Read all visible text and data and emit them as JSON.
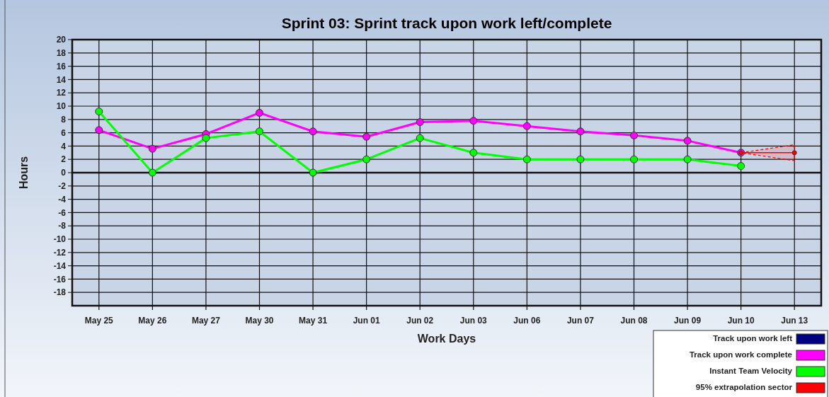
{
  "chart_data": {
    "type": "line",
    "title": "Sprint 03: Sprint track upon work left/complete",
    "xlabel": "Work Days",
    "ylabel": "Hours",
    "categories": [
      "May 25",
      "May 26",
      "May 27",
      "May 30",
      "May 31",
      "Jun 01",
      "Jun 02",
      "Jun 03",
      "Jun 06",
      "Jun 07",
      "Jun 08",
      "Jun 09",
      "Jun 10",
      "Jun 13"
    ],
    "series": [
      {
        "name": "Track upon work left",
        "color": "#000080",
        "values": [
          null,
          null,
          null,
          null,
          null,
          null,
          null,
          null,
          null,
          null,
          null,
          null,
          null,
          null
        ]
      },
      {
        "name": "Track upon work complete",
        "color": "#ff00ff",
        "values": [
          6.4,
          3.6,
          5.8,
          9.0,
          6.2,
          5.4,
          7.6,
          7.8,
          7.0,
          6.2,
          5.6,
          4.8,
          3.0,
          null
        ]
      },
      {
        "name": "Instant Team Velocity",
        "color": "#00ff00",
        "values": [
          9.2,
          0,
          5.2,
          6.2,
          0,
          2.0,
          5.2,
          3.0,
          2.0,
          2.0,
          2.0,
          2.0,
          1.0,
          null
        ]
      },
      {
        "name": "95% extrapolation sector",
        "color": "#ff0000",
        "values": [
          null,
          null,
          null,
          null,
          null,
          null,
          null,
          null,
          null,
          null,
          null,
          null,
          3.0,
          3.0
        ],
        "lower": [
          null,
          null,
          null,
          null,
          null,
          null,
          null,
          null,
          null,
          null,
          null,
          null,
          3.0,
          1.8
        ],
        "upper": [
          null,
          null,
          null,
          null,
          null,
          null,
          null,
          null,
          null,
          null,
          null,
          null,
          3.0,
          4.2
        ]
      }
    ],
    "ylim": [
      -20,
      20
    ],
    "yticks": [
      -18,
      -16,
      -14,
      -12,
      -10,
      -8,
      -6,
      -4,
      -2,
      0,
      2,
      4,
      6,
      8,
      10,
      12,
      14,
      16,
      18,
      20
    ],
    "grid": true,
    "legend": "bottom right",
    "marker": "circle",
    "line_style": "solid"
  }
}
